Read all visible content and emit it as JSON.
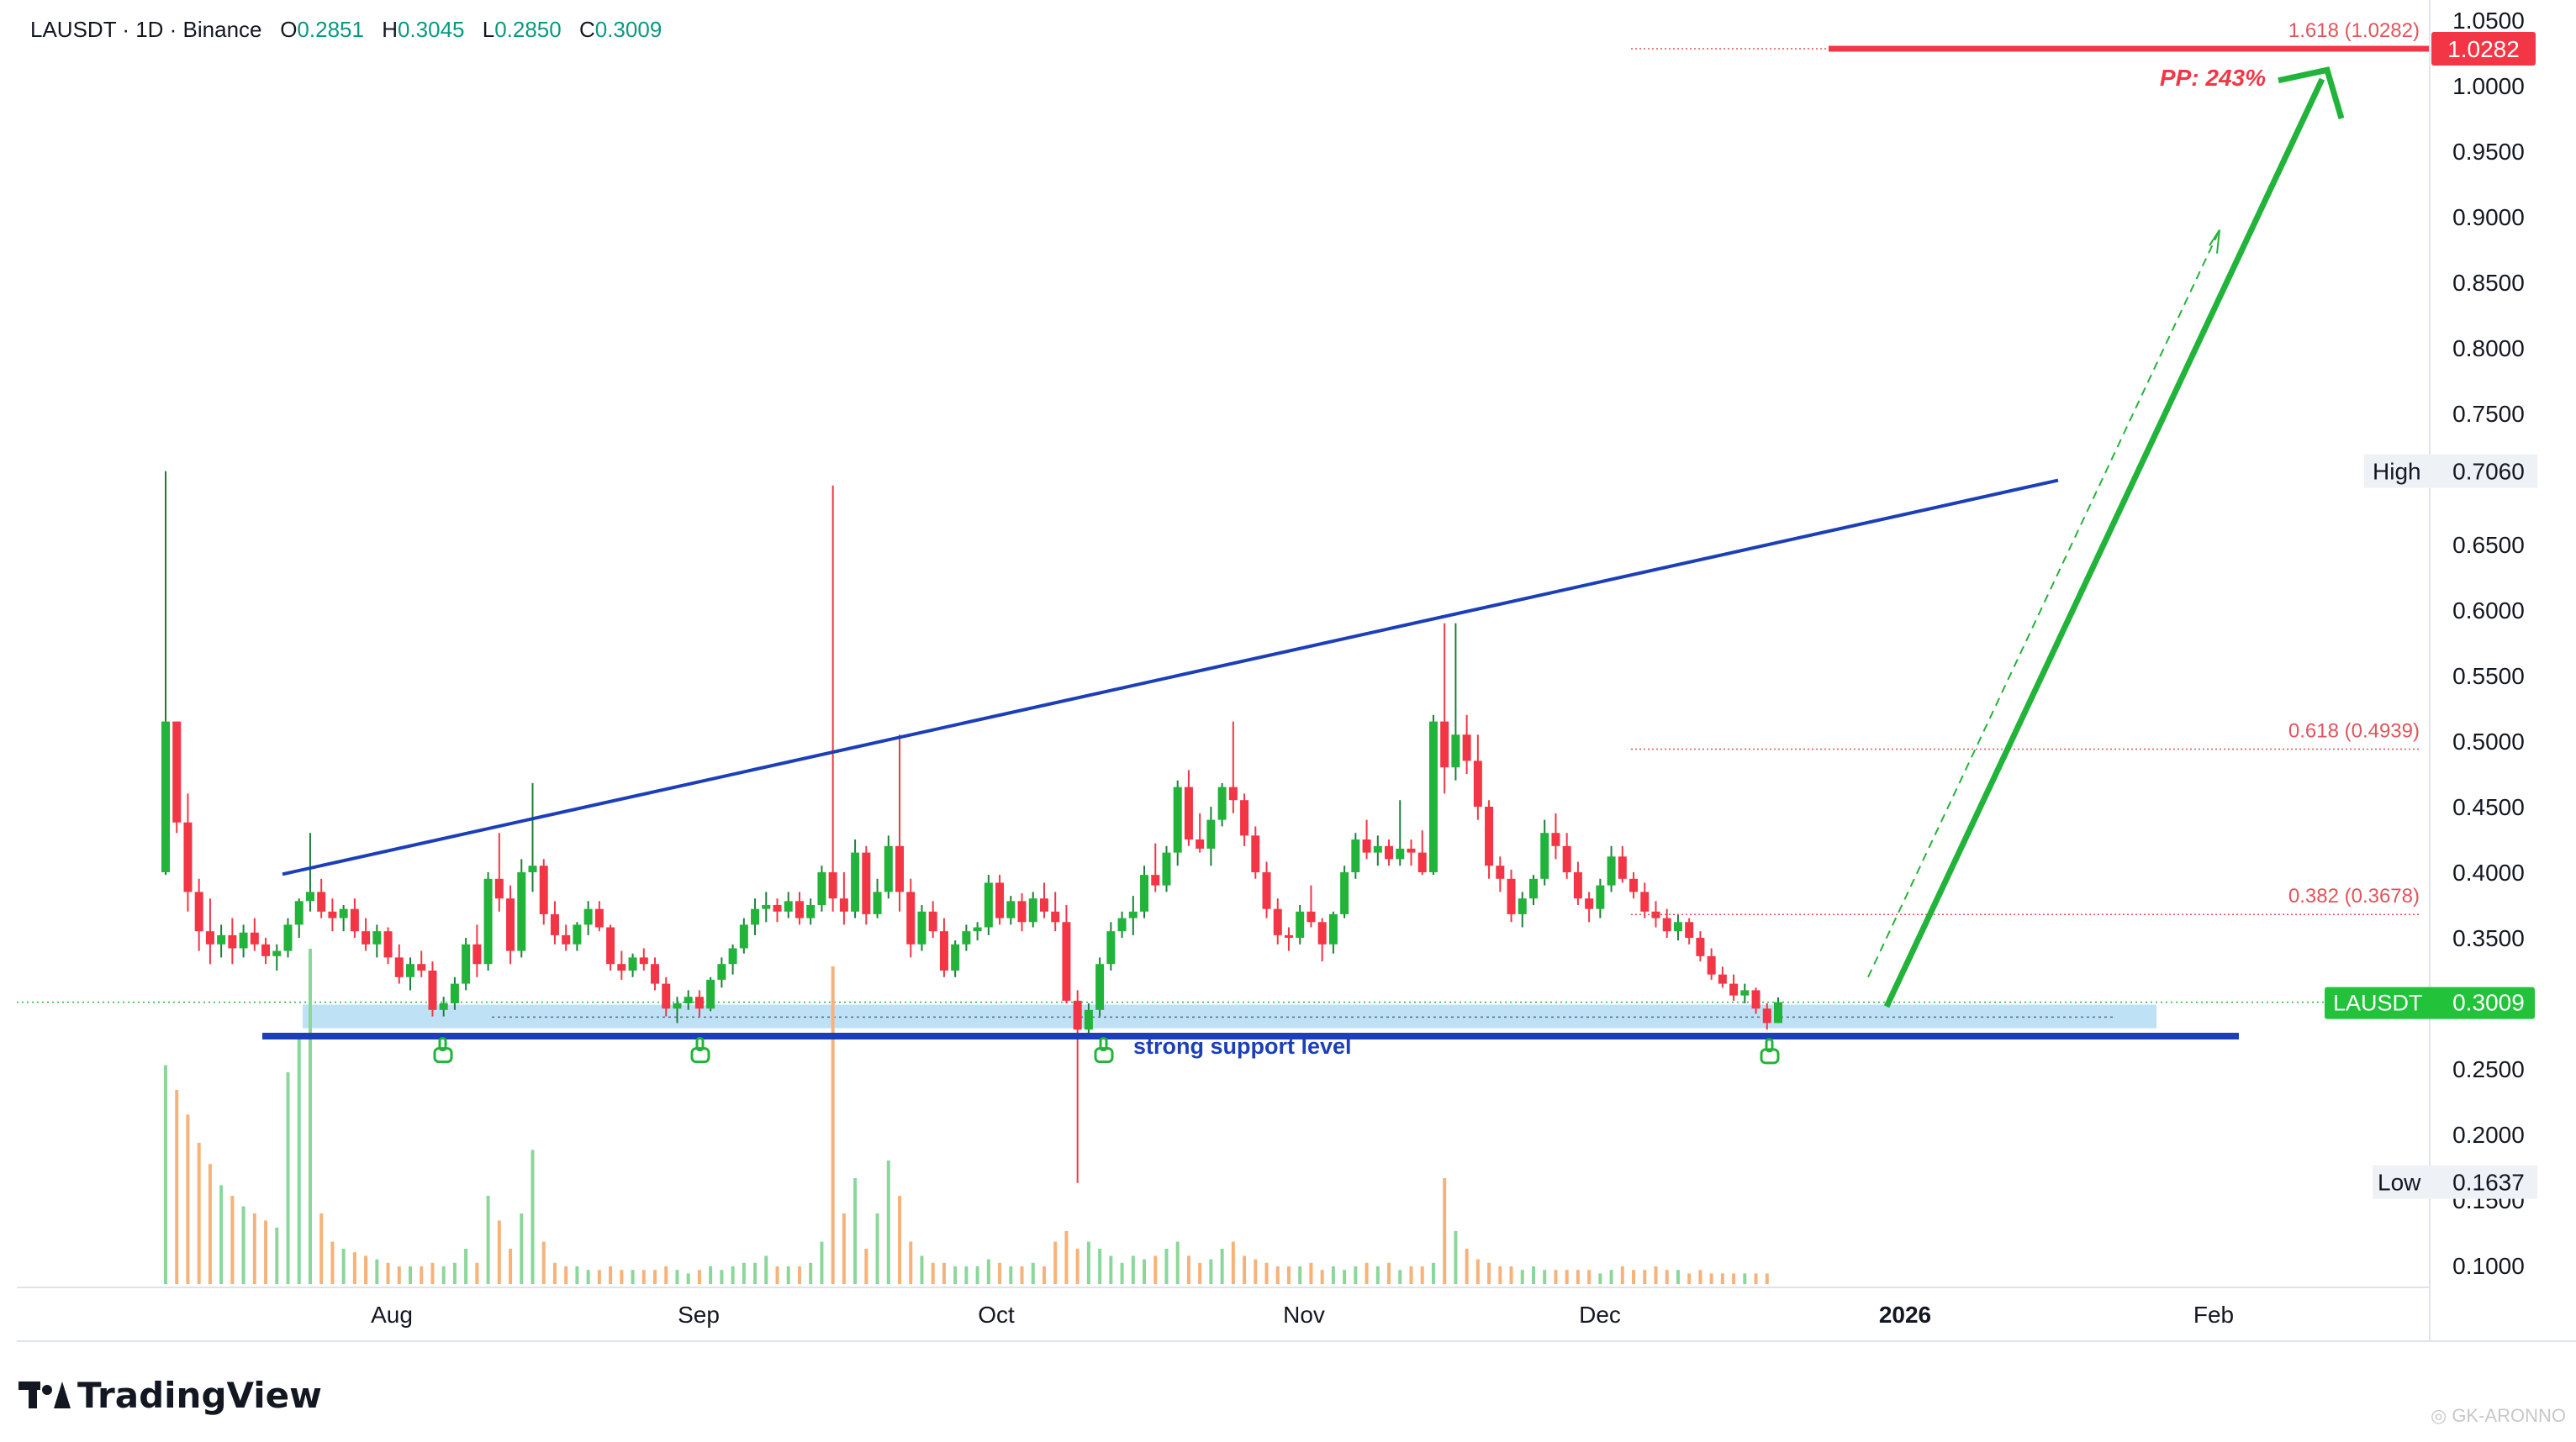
{
  "header": {
    "symbol": "LAUSDT · 1D · Binance",
    "o_label": "O",
    "o_value": "0.2851",
    "h_label": "H",
    "h_value": "0.3045",
    "l_label": "L",
    "l_value": "0.2850",
    "c_label": "C",
    "c_value": "0.3009"
  },
  "brand": {
    "name": "TradingView"
  },
  "watermark": "GK-ARONNO",
  "colors": {
    "up": "#22b33a",
    "down": "#f23645",
    "trendline": "#1c3fb8",
    "support_zone": "#b3dcf5",
    "arrow": "#22b33a",
    "target": "#f23645",
    "fib": "#e3535c",
    "price_badge": "#22c33a"
  },
  "chart_data": {
    "type": "candlestick",
    "symbol": "LAUSDT",
    "timeframe": "1D",
    "exchange": "Binance",
    "y_axis": {
      "ticks": [
        "1.0500",
        "1.0000",
        "0.9500",
        "0.9000",
        "0.8500",
        "0.8000",
        "0.7500",
        "0.6500",
        "0.6000",
        "0.5500",
        "0.5000",
        "0.4500",
        "0.4000",
        "0.3500",
        "0.2500",
        "0.2000",
        "0.1500",
        "0.1000"
      ],
      "range": [
        0.095,
        1.055
      ]
    },
    "x_axis": {
      "ticks": [
        "Aug",
        "Sep",
        "Oct",
        "Nov",
        "Dec",
        "2026",
        "Feb"
      ]
    },
    "last_price": {
      "label": "LAUSDT",
      "value": "0.3009"
    },
    "high": {
      "label": "High",
      "value": "0.7060"
    },
    "low": {
      "label": "Low",
      "value": "0.1637"
    },
    "target": {
      "value": "1.0282"
    },
    "fib_levels": [
      {
        "label": "1.618 (1.0282)",
        "value": 1.0282
      },
      {
        "label": "0.618 (0.4939)",
        "value": 0.4939
      },
      {
        "label": "0.382 (0.3678)",
        "value": 0.3678
      }
    ],
    "annotations": {
      "support_text": "strong support level",
      "pp_text": "PP: 243%",
      "support_price": 0.275,
      "support_zone": [
        0.281,
        0.299
      ]
    },
    "candles": [
      {
        "o": 0.4,
        "h": 0.706,
        "l": 0.398,
        "c": 0.515
      },
      {
        "o": 0.515,
        "h": 0.515,
        "l": 0.43,
        "c": 0.438
      },
      {
        "o": 0.438,
        "h": 0.46,
        "l": 0.37,
        "c": 0.385
      },
      {
        "o": 0.385,
        "h": 0.395,
        "l": 0.34,
        "c": 0.355
      },
      {
        "o": 0.355,
        "h": 0.38,
        "l": 0.33,
        "c": 0.345
      },
      {
        "o": 0.345,
        "h": 0.36,
        "l": 0.335,
        "c": 0.352
      },
      {
        "o": 0.352,
        "h": 0.365,
        "l": 0.33,
        "c": 0.342
      },
      {
        "o": 0.342,
        "h": 0.36,
        "l": 0.335,
        "c": 0.354
      },
      {
        "o": 0.354,
        "h": 0.365,
        "l": 0.34,
        "c": 0.345
      },
      {
        "o": 0.345,
        "h": 0.35,
        "l": 0.33,
        "c": 0.336
      },
      {
        "o": 0.336,
        "h": 0.345,
        "l": 0.325,
        "c": 0.34
      },
      {
        "o": 0.34,
        "h": 0.365,
        "l": 0.335,
        "c": 0.36
      },
      {
        "o": 0.36,
        "h": 0.38,
        "l": 0.35,
        "c": 0.378
      },
      {
        "o": 0.378,
        "h": 0.43,
        "l": 0.37,
        "c": 0.385
      },
      {
        "o": 0.385,
        "h": 0.395,
        "l": 0.365,
        "c": 0.37
      },
      {
        "o": 0.37,
        "h": 0.38,
        "l": 0.355,
        "c": 0.365
      },
      {
        "o": 0.365,
        "h": 0.375,
        "l": 0.355,
        "c": 0.372
      },
      {
        "o": 0.372,
        "h": 0.38,
        "l": 0.35,
        "c": 0.355
      },
      {
        "o": 0.355,
        "h": 0.365,
        "l": 0.34,
        "c": 0.345
      },
      {
        "o": 0.345,
        "h": 0.36,
        "l": 0.335,
        "c": 0.355
      },
      {
        "o": 0.355,
        "h": 0.358,
        "l": 0.33,
        "c": 0.335
      },
      {
        "o": 0.335,
        "h": 0.345,
        "l": 0.315,
        "c": 0.32
      },
      {
        "o": 0.32,
        "h": 0.335,
        "l": 0.31,
        "c": 0.33
      },
      {
        "o": 0.33,
        "h": 0.34,
        "l": 0.32,
        "c": 0.325
      },
      {
        "o": 0.325,
        "h": 0.332,
        "l": 0.29,
        "c": 0.295
      },
      {
        "o": 0.295,
        "h": 0.305,
        "l": 0.29,
        "c": 0.3
      },
      {
        "o": 0.3,
        "h": 0.32,
        "l": 0.295,
        "c": 0.315
      },
      {
        "o": 0.315,
        "h": 0.35,
        "l": 0.31,
        "c": 0.345
      },
      {
        "o": 0.345,
        "h": 0.36,
        "l": 0.32,
        "c": 0.33
      },
      {
        "o": 0.33,
        "h": 0.4,
        "l": 0.325,
        "c": 0.395
      },
      {
        "o": 0.395,
        "h": 0.43,
        "l": 0.37,
        "c": 0.38
      },
      {
        "o": 0.38,
        "h": 0.39,
        "l": 0.33,
        "c": 0.34
      },
      {
        "o": 0.34,
        "h": 0.41,
        "l": 0.335,
        "c": 0.4
      },
      {
        "o": 0.4,
        "h": 0.468,
        "l": 0.385,
        "c": 0.405
      },
      {
        "o": 0.405,
        "h": 0.41,
        "l": 0.36,
        "c": 0.368
      },
      {
        "o": 0.368,
        "h": 0.378,
        "l": 0.345,
        "c": 0.352
      },
      {
        "o": 0.352,
        "h": 0.36,
        "l": 0.34,
        "c": 0.345
      },
      {
        "o": 0.345,
        "h": 0.362,
        "l": 0.34,
        "c": 0.36
      },
      {
        "o": 0.36,
        "h": 0.378,
        "l": 0.352,
        "c": 0.372
      },
      {
        "o": 0.372,
        "h": 0.378,
        "l": 0.355,
        "c": 0.358
      },
      {
        "o": 0.358,
        "h": 0.36,
        "l": 0.325,
        "c": 0.33
      },
      {
        "o": 0.33,
        "h": 0.34,
        "l": 0.318,
        "c": 0.325
      },
      {
        "o": 0.325,
        "h": 0.338,
        "l": 0.32,
        "c": 0.335
      },
      {
        "o": 0.335,
        "h": 0.342,
        "l": 0.325,
        "c": 0.33
      },
      {
        "o": 0.33,
        "h": 0.335,
        "l": 0.31,
        "c": 0.315
      },
      {
        "o": 0.315,
        "h": 0.32,
        "l": 0.29,
        "c": 0.296
      },
      {
        "o": 0.296,
        "h": 0.305,
        "l": 0.285,
        "c": 0.3
      },
      {
        "o": 0.3,
        "h": 0.31,
        "l": 0.295,
        "c": 0.305
      },
      {
        "o": 0.305,
        "h": 0.31,
        "l": 0.29,
        "c": 0.296
      },
      {
        "o": 0.296,
        "h": 0.32,
        "l": 0.294,
        "c": 0.318
      },
      {
        "o": 0.318,
        "h": 0.335,
        "l": 0.312,
        "c": 0.33
      },
      {
        "o": 0.33,
        "h": 0.345,
        "l": 0.322,
        "c": 0.342
      },
      {
        "o": 0.342,
        "h": 0.365,
        "l": 0.338,
        "c": 0.36
      },
      {
        "o": 0.36,
        "h": 0.38,
        "l": 0.352,
        "c": 0.372
      },
      {
        "o": 0.372,
        "h": 0.385,
        "l": 0.362,
        "c": 0.375
      },
      {
        "o": 0.375,
        "h": 0.38,
        "l": 0.362,
        "c": 0.37
      },
      {
        "o": 0.37,
        "h": 0.385,
        "l": 0.365,
        "c": 0.378
      },
      {
        "o": 0.378,
        "h": 0.385,
        "l": 0.36,
        "c": 0.365
      },
      {
        "o": 0.365,
        "h": 0.38,
        "l": 0.36,
        "c": 0.375
      },
      {
        "o": 0.375,
        "h": 0.405,
        "l": 0.37,
        "c": 0.4
      },
      {
        "o": 0.4,
        "h": 0.695,
        "l": 0.37,
        "c": 0.38
      },
      {
        "o": 0.38,
        "h": 0.4,
        "l": 0.36,
        "c": 0.37
      },
      {
        "o": 0.37,
        "h": 0.425,
        "l": 0.365,
        "c": 0.415
      },
      {
        "o": 0.415,
        "h": 0.42,
        "l": 0.36,
        "c": 0.368
      },
      {
        "o": 0.368,
        "h": 0.395,
        "l": 0.365,
        "c": 0.385
      },
      {
        "o": 0.385,
        "h": 0.428,
        "l": 0.38,
        "c": 0.42
      },
      {
        "o": 0.42,
        "h": 0.505,
        "l": 0.37,
        "c": 0.385
      },
      {
        "o": 0.385,
        "h": 0.395,
        "l": 0.335,
        "c": 0.345
      },
      {
        "o": 0.345,
        "h": 0.375,
        "l": 0.34,
        "c": 0.37
      },
      {
        "o": 0.37,
        "h": 0.378,
        "l": 0.35,
        "c": 0.355
      },
      {
        "o": 0.355,
        "h": 0.365,
        "l": 0.32,
        "c": 0.325
      },
      {
        "o": 0.325,
        "h": 0.348,
        "l": 0.32,
        "c": 0.345
      },
      {
        "o": 0.345,
        "h": 0.36,
        "l": 0.34,
        "c": 0.355
      },
      {
        "o": 0.355,
        "h": 0.362,
        "l": 0.348,
        "c": 0.358
      },
      {
        "o": 0.358,
        "h": 0.398,
        "l": 0.352,
        "c": 0.392
      },
      {
        "o": 0.392,
        "h": 0.398,
        "l": 0.36,
        "c": 0.365
      },
      {
        "o": 0.365,
        "h": 0.382,
        "l": 0.36,
        "c": 0.378
      },
      {
        "o": 0.378,
        "h": 0.384,
        "l": 0.355,
        "c": 0.362
      },
      {
        "o": 0.362,
        "h": 0.385,
        "l": 0.358,
        "c": 0.38
      },
      {
        "o": 0.38,
        "h": 0.392,
        "l": 0.365,
        "c": 0.37
      },
      {
        "o": 0.37,
        "h": 0.385,
        "l": 0.355,
        "c": 0.362
      },
      {
        "o": 0.362,
        "h": 0.375,
        "l": 0.3,
        "c": 0.302
      },
      {
        "o": 0.302,
        "h": 0.31,
        "l": 0.163,
        "c": 0.28
      },
      {
        "o": 0.28,
        "h": 0.3,
        "l": 0.275,
        "c": 0.295
      },
      {
        "o": 0.295,
        "h": 0.335,
        "l": 0.29,
        "c": 0.33
      },
      {
        "o": 0.33,
        "h": 0.362,
        "l": 0.325,
        "c": 0.355
      },
      {
        "o": 0.355,
        "h": 0.37,
        "l": 0.35,
        "c": 0.365
      },
      {
        "o": 0.365,
        "h": 0.382,
        "l": 0.352,
        "c": 0.37
      },
      {
        "o": 0.37,
        "h": 0.405,
        "l": 0.365,
        "c": 0.398
      },
      {
        "o": 0.398,
        "h": 0.422,
        "l": 0.385,
        "c": 0.39
      },
      {
        "o": 0.39,
        "h": 0.42,
        "l": 0.385,
        "c": 0.415
      },
      {
        "o": 0.415,
        "h": 0.47,
        "l": 0.405,
        "c": 0.465
      },
      {
        "o": 0.465,
        "h": 0.478,
        "l": 0.42,
        "c": 0.425
      },
      {
        "o": 0.425,
        "h": 0.445,
        "l": 0.415,
        "c": 0.418
      },
      {
        "o": 0.418,
        "h": 0.45,
        "l": 0.405,
        "c": 0.44
      },
      {
        "o": 0.44,
        "h": 0.468,
        "l": 0.435,
        "c": 0.465
      },
      {
        "o": 0.465,
        "h": 0.515,
        "l": 0.445,
        "c": 0.455
      },
      {
        "o": 0.455,
        "h": 0.46,
        "l": 0.42,
        "c": 0.428
      },
      {
        "o": 0.428,
        "h": 0.435,
        "l": 0.395,
        "c": 0.4
      },
      {
        "o": 0.4,
        "h": 0.408,
        "l": 0.365,
        "c": 0.372
      },
      {
        "o": 0.372,
        "h": 0.38,
        "l": 0.345,
        "c": 0.352
      },
      {
        "o": 0.352,
        "h": 0.358,
        "l": 0.34,
        "c": 0.35
      },
      {
        "o": 0.35,
        "h": 0.375,
        "l": 0.345,
        "c": 0.37
      },
      {
        "o": 0.37,
        "h": 0.39,
        "l": 0.358,
        "c": 0.362
      },
      {
        "o": 0.362,
        "h": 0.365,
        "l": 0.332,
        "c": 0.345
      },
      {
        "o": 0.345,
        "h": 0.37,
        "l": 0.338,
        "c": 0.368
      },
      {
        "o": 0.368,
        "h": 0.405,
        "l": 0.365,
        "c": 0.4
      },
      {
        "o": 0.4,
        "h": 0.43,
        "l": 0.395,
        "c": 0.425
      },
      {
        "o": 0.425,
        "h": 0.44,
        "l": 0.41,
        "c": 0.415
      },
      {
        "o": 0.415,
        "h": 0.428,
        "l": 0.405,
        "c": 0.42
      },
      {
        "o": 0.42,
        "h": 0.425,
        "l": 0.405,
        "c": 0.41
      },
      {
        "o": 0.41,
        "h": 0.455,
        "l": 0.405,
        "c": 0.418
      },
      {
        "o": 0.418,
        "h": 0.425,
        "l": 0.405,
        "c": 0.415
      },
      {
        "o": 0.415,
        "h": 0.432,
        "l": 0.398,
        "c": 0.4
      },
      {
        "o": 0.4,
        "h": 0.52,
        "l": 0.398,
        "c": 0.515
      },
      {
        "o": 0.515,
        "h": 0.59,
        "l": 0.46,
        "c": 0.48
      },
      {
        "o": 0.48,
        "h": 0.59,
        "l": 0.47,
        "c": 0.505
      },
      {
        "o": 0.505,
        "h": 0.52,
        "l": 0.475,
        "c": 0.485
      },
      {
        "o": 0.485,
        "h": 0.505,
        "l": 0.44,
        "c": 0.45
      },
      {
        "o": 0.45,
        "h": 0.455,
        "l": 0.395,
        "c": 0.405
      },
      {
        "o": 0.405,
        "h": 0.412,
        "l": 0.385,
        "c": 0.395
      },
      {
        "o": 0.395,
        "h": 0.402,
        "l": 0.362,
        "c": 0.368
      },
      {
        "o": 0.368,
        "h": 0.385,
        "l": 0.358,
        "c": 0.38
      },
      {
        "o": 0.38,
        "h": 0.398,
        "l": 0.375,
        "c": 0.395
      },
      {
        "o": 0.395,
        "h": 0.44,
        "l": 0.39,
        "c": 0.43
      },
      {
        "o": 0.43,
        "h": 0.445,
        "l": 0.41,
        "c": 0.42
      },
      {
        "o": 0.42,
        "h": 0.43,
        "l": 0.395,
        "c": 0.4
      },
      {
        "o": 0.4,
        "h": 0.408,
        "l": 0.375,
        "c": 0.38
      },
      {
        "o": 0.38,
        "h": 0.385,
        "l": 0.362,
        "c": 0.372
      },
      {
        "o": 0.372,
        "h": 0.395,
        "l": 0.365,
        "c": 0.39
      },
      {
        "o": 0.39,
        "h": 0.42,
        "l": 0.385,
        "c": 0.412
      },
      {
        "o": 0.412,
        "h": 0.42,
        "l": 0.392,
        "c": 0.395
      },
      {
        "o": 0.395,
        "h": 0.4,
        "l": 0.38,
        "c": 0.385
      },
      {
        "o": 0.385,
        "h": 0.392,
        "l": 0.365,
        "c": 0.37
      },
      {
        "o": 0.37,
        "h": 0.378,
        "l": 0.358,
        "c": 0.365
      },
      {
        "o": 0.365,
        "h": 0.372,
        "l": 0.35,
        "c": 0.355
      },
      {
        "o": 0.355,
        "h": 0.368,
        "l": 0.348,
        "c": 0.362
      },
      {
        "o": 0.362,
        "h": 0.365,
        "l": 0.345,
        "c": 0.35
      },
      {
        "o": 0.35,
        "h": 0.355,
        "l": 0.332,
        "c": 0.336
      },
      {
        "o": 0.336,
        "h": 0.342,
        "l": 0.318,
        "c": 0.322
      },
      {
        "o": 0.322,
        "h": 0.328,
        "l": 0.312,
        "c": 0.315
      },
      {
        "o": 0.315,
        "h": 0.322,
        "l": 0.302,
        "c": 0.306
      },
      {
        "o": 0.306,
        "h": 0.315,
        "l": 0.3,
        "c": 0.31
      },
      {
        "o": 0.31,
        "h": 0.312,
        "l": 0.292,
        "c": 0.296
      },
      {
        "o": 0.296,
        "h": 0.3,
        "l": 0.28,
        "c": 0.285
      },
      {
        "o": 0.285,
        "h": 0.3045,
        "l": 0.285,
        "c": 0.3009
      }
    ],
    "volume": [
      0.62,
      0.55,
      0.48,
      0.4,
      0.34,
      0.28,
      0.25,
      0.22,
      0.2,
      0.18,
      0.16,
      0.6,
      0.7,
      0.95,
      0.2,
      0.12,
      0.1,
      0.09,
      0.08,
      0.07,
      0.06,
      0.05,
      0.05,
      0.05,
      0.06,
      0.05,
      0.06,
      0.1,
      0.06,
      0.25,
      0.18,
      0.1,
      0.2,
      0.38,
      0.12,
      0.06,
      0.05,
      0.05,
      0.04,
      0.04,
      0.05,
      0.04,
      0.04,
      0.04,
      0.04,
      0.05,
      0.04,
      0.03,
      0.04,
      0.05,
      0.04,
      0.05,
      0.06,
      0.06,
      0.08,
      0.05,
      0.05,
      0.05,
      0.06,
      0.12,
      0.9,
      0.2,
      0.3,
      0.1,
      0.2,
      0.35,
      0.25,
      0.12,
      0.08,
      0.06,
      0.06,
      0.05,
      0.05,
      0.05,
      0.07,
      0.06,
      0.05,
      0.05,
      0.06,
      0.05,
      0.12,
      0.15,
      0.1,
      0.12,
      0.1,
      0.08,
      0.06,
      0.08,
      0.07,
      0.08,
      0.1,
      0.12,
      0.08,
      0.06,
      0.07,
      0.1,
      0.12,
      0.08,
      0.07,
      0.06,
      0.05,
      0.05,
      0.05,
      0.06,
      0.04,
      0.05,
      0.04,
      0.05,
      0.06,
      0.05,
      0.06,
      0.04,
      0.05,
      0.05,
      0.06,
      0.3,
      0.15,
      0.1,
      0.07,
      0.06,
      0.05,
      0.05,
      0.04,
      0.05,
      0.04,
      0.04,
      0.04,
      0.04,
      0.04,
      0.03,
      0.04,
      0.05,
      0.04,
      0.04,
      0.05,
      0.04,
      0.04,
      0.03,
      0.04,
      0.03,
      0.03,
      0.03,
      0.03,
      0.03,
      0.03
    ]
  }
}
